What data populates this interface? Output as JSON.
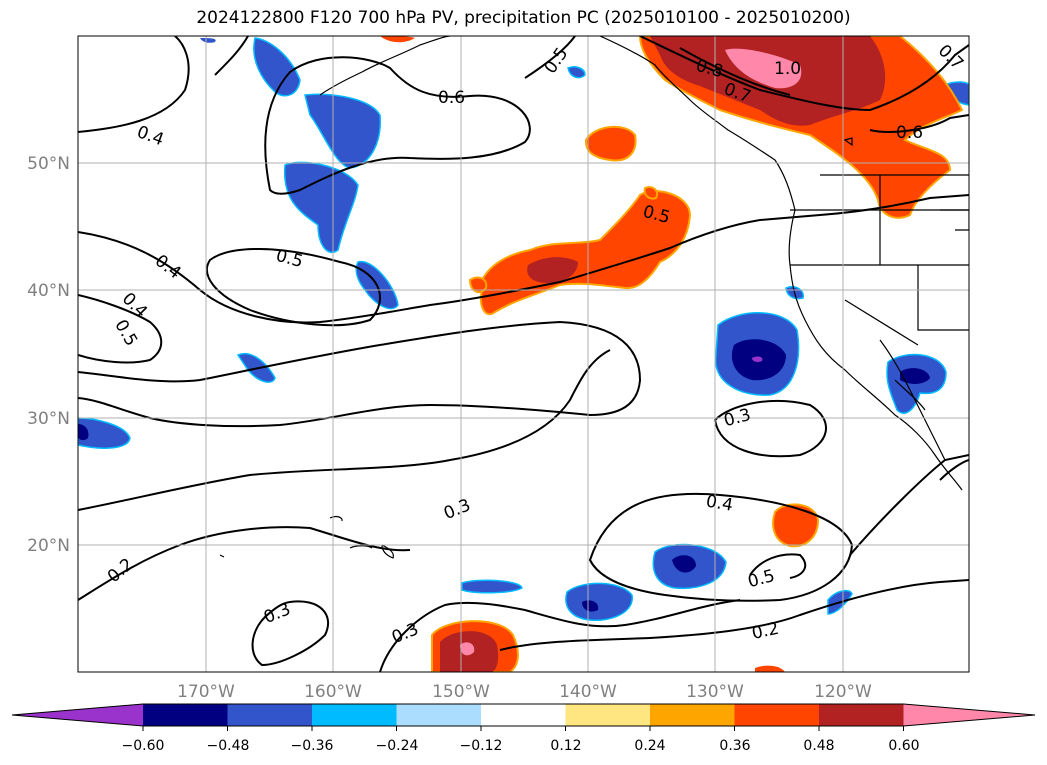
{
  "title": "2024122800 F120 700 hPa PV, precipitation PC (2025010100 - 2025010200)",
  "lat_labels": [
    "50°N",
    "40°N",
    "30°N",
    "20°N"
  ],
  "lon_labels": [
    "170°W",
    "160°W",
    "150°W",
    "140°W",
    "130°W",
    "120°W"
  ],
  "colorbar": {
    "tick_labels": [
      "−0.60",
      "−0.48",
      "−0.36",
      "−0.24",
      "−0.12",
      "0.12",
      "0.24",
      "0.36",
      "0.48",
      "0.60"
    ],
    "colors": [
      "#9933cc",
      "#000080",
      "#3355cc",
      "#00bbff",
      "#aaddff",
      "#ffffff",
      "#ffe680",
      "#ffa500",
      "#ff4500",
      "#b22222",
      "#ff88aa"
    ]
  },
  "contour_labels": [
    "0.5",
    "0.6",
    "0.4",
    "0.8",
    "1.0",
    "0.7",
    "0.7",
    "0.6",
    "0.5",
    "0.5",
    "0.4",
    "0.4",
    "0.5",
    "0.3",
    "0.4",
    "0.3",
    "0.2",
    "0.5",
    "0.3",
    "0.3",
    "0.2"
  ]
}
